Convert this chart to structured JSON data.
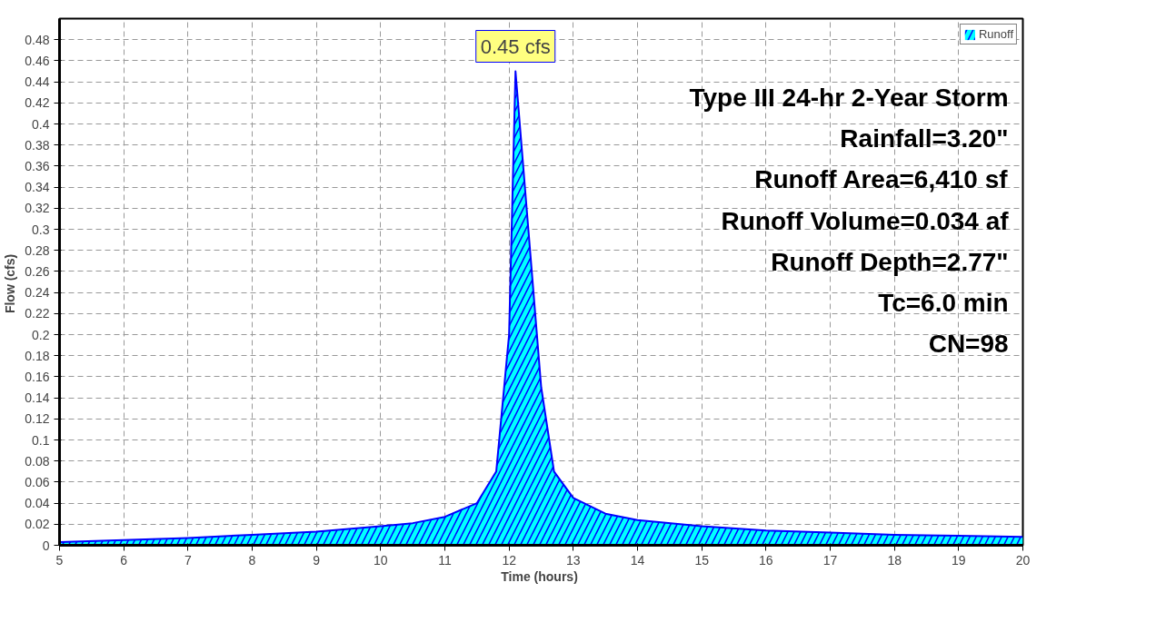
{
  "chart_data": {
    "type": "area",
    "xlabel": "Time  (hours)",
    "ylabel": "Flow  (cfs)",
    "x": [
      5,
      6,
      7,
      8,
      9,
      10,
      10.5,
      11,
      11.5,
      11.8,
      12.0,
      12.1,
      12.3,
      12.5,
      12.7,
      13.0,
      13.5,
      14,
      15,
      16,
      17,
      18,
      19,
      20
    ],
    "series": [
      {
        "name": "Runoff",
        "color": "#00ffff",
        "values": [
          0.003,
          0.005,
          0.007,
          0.01,
          0.013,
          0.018,
          0.021,
          0.027,
          0.04,
          0.07,
          0.2,
          0.45,
          0.3,
          0.15,
          0.07,
          0.045,
          0.03,
          0.024,
          0.018,
          0.014,
          0.012,
          0.01,
          0.009,
          0.008
        ]
      }
    ],
    "xlim": [
      5,
      20
    ],
    "ylim": [
      0,
      0.5
    ],
    "xticks": [
      5,
      6,
      7,
      8,
      9,
      10,
      11,
      12,
      13,
      14,
      15,
      16,
      17,
      18,
      19,
      20
    ],
    "yticks": [
      0,
      0.02,
      0.04,
      0.06,
      0.08,
      0.1,
      0.12,
      0.14,
      0.16,
      0.18,
      0.2,
      0.22,
      0.24,
      0.26,
      0.28,
      0.3,
      0.32,
      0.34,
      0.36,
      0.38,
      0.4,
      0.42,
      0.44,
      0.46,
      0.48
    ],
    "grid": true,
    "legend": "top right",
    "annotations": [
      {
        "text": "0.45 cfs",
        "x": 12.1,
        "y": 0.45
      },
      "Type III 24-hr 2-Year Storm",
      "Rainfall=3.20\"",
      "Runoff Area=6,410 sf",
      "Runoff Volume=0.034 af",
      "Runoff Depth=2.77\"",
      "Tc=6.0 min",
      "CN=98"
    ]
  }
}
